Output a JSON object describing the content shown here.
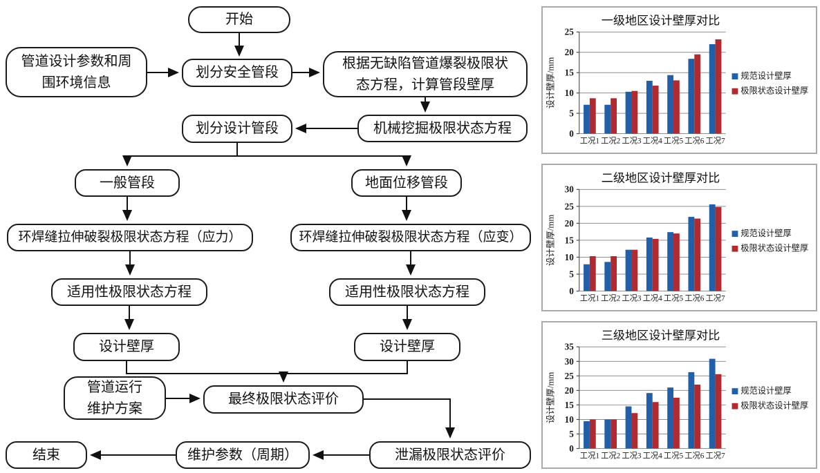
{
  "flowchart": {
    "nodes": {
      "start": "开始",
      "input_info": "管道设计参数和周\n围环境信息",
      "divide_safety": "划分安全管段",
      "burst_calc": "根据无缺陷管道爆裂极限状\n态方程，计算管段壁厚",
      "mech_excav": "机械挖掘极限状态方程",
      "divide_design": "划分设计管段",
      "general_segment": "一般管段",
      "ground_segment": "地面位移管段",
      "girth_weld_stress": "环焊缝拉伸破裂极限状态方程（应力）",
      "girth_weld_strain": "环焊缝拉伸破裂极限状态方程（应变）",
      "serviceability_left": "适用性极限状态方程",
      "serviceability_right": "适用性极限状态方程",
      "design_wall_left": "设计壁厚",
      "design_wall_right": "设计壁厚",
      "maintenance_plan": "管道运行\n维护方案",
      "final_eval": "最终极限状态评价",
      "leak_eval": "泄漏极限状态评价",
      "maintenance_params": "维护参数（周期）",
      "end": "结束"
    }
  },
  "chart_data": [
    {
      "type": "bar",
      "title": "一级地区设计壁厚对比",
      "ylabel": "设计壁厚/mm",
      "ylim": [
        0,
        25
      ],
      "ystep": 5,
      "yticks": [
        0,
        5,
        10,
        15,
        20,
        25
      ],
      "grid": true,
      "legend_position": "right",
      "categories": [
        "工况1",
        "工况2",
        "工况3",
        "工况4",
        "工况5",
        "工况6",
        "工况7"
      ],
      "series": [
        {
          "name": "规范设计壁厚",
          "color": "#215fa8",
          "values": [
            7.1,
            7.1,
            10.3,
            13.0,
            14.4,
            18.4,
            22.0
          ]
        },
        {
          "name": "极限状态设计壁厚",
          "color": "#b02a30",
          "values": [
            8.7,
            8.7,
            10.5,
            11.8,
            13.1,
            19.5,
            23.2
          ]
        }
      ]
    },
    {
      "type": "bar",
      "title": "二级地区设计壁厚对比",
      "ylabel": "设计壁厚/mm",
      "ylim": [
        0,
        30
      ],
      "ystep": 5,
      "yticks": [
        0,
        5,
        10,
        15,
        20,
        25,
        30
      ],
      "grid": true,
      "legend_position": "right",
      "categories": [
        "工况1",
        "工况2",
        "工况3",
        "工况4",
        "工况5",
        "工况6",
        "工况7"
      ],
      "series": [
        {
          "name": "规范设计壁厚",
          "color": "#215fa8",
          "values": [
            7.9,
            8.6,
            12.2,
            15.8,
            17.4,
            21.9,
            25.6
          ]
        },
        {
          "name": "极限状态设计壁厚",
          "color": "#b02a30",
          "values": [
            10.3,
            10.3,
            12.2,
            15.4,
            17.0,
            21.4,
            24.8
          ]
        }
      ]
    },
    {
      "type": "bar",
      "title": "三级地区设计壁厚对比",
      "ylabel": "设计壁厚/mm",
      "ylim": [
        0,
        35
      ],
      "ystep": 5,
      "yticks": [
        0,
        5,
        10,
        15,
        20,
        25,
        30,
        35
      ],
      "grid": true,
      "legend_position": "right",
      "categories": [
        "工况1",
        "工况2",
        "工况3",
        "工况4",
        "工况5",
        "工况6",
        "工况7"
      ],
      "series": [
        {
          "name": "规范设计壁厚",
          "color": "#215fa8",
          "values": [
            9.4,
            10.0,
            14.5,
            19.1,
            21.0,
            26.3,
            30.9
          ]
        },
        {
          "name": "极限状态设计壁厚",
          "color": "#b02a30",
          "values": [
            10.0,
            10.0,
            12.2,
            16.0,
            17.5,
            22.0,
            25.6
          ]
        }
      ]
    }
  ]
}
